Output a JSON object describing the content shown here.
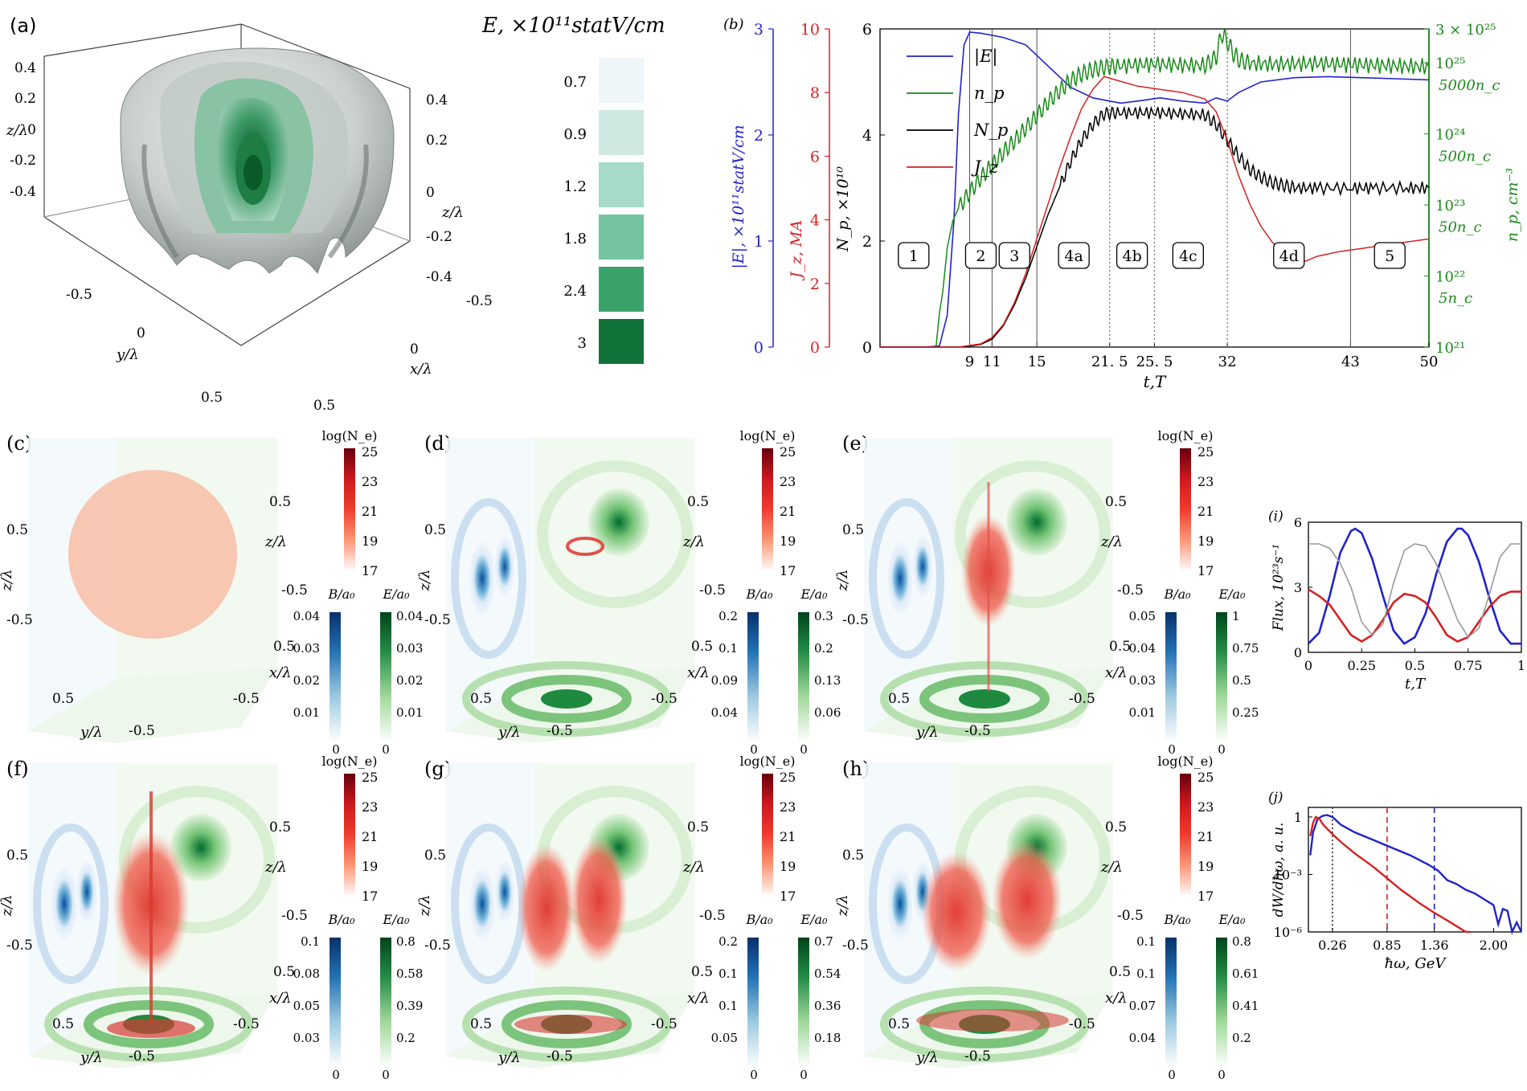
{
  "panel_labels": {
    "a": "(a)",
    "b": "(b)",
    "c": "(c)",
    "d": "(d)",
    "e": "(e)",
    "f": "(f)",
    "g": "(g)",
    "h": "(h)",
    "i": "(i)",
    "j": "(j)"
  },
  "panel_a": {
    "title": "E,  ×10¹¹statV/cm",
    "levels": [
      "0.7",
      "0.9",
      "1.2",
      "1.8",
      "2.4",
      "3"
    ],
    "level_colors": [
      "#eef6fa",
      "#cfe9e2",
      "#a6dac9",
      "#74c3a1",
      "#3aa26a",
      "#12733a"
    ],
    "axis_z_left": "z/λ",
    "axis_z_right": "z/λ",
    "axis_y": "y/λ",
    "axis_x": "x/λ",
    "z_ticks_left": [
      "0.4",
      "0.2",
      "0",
      "-0.2",
      "-0.4"
    ],
    "z_ticks_right": [
      "0.4",
      "0.2",
      "0",
      "-0.2",
      "-0.4"
    ],
    "y_ticks": [
      "-0.5",
      "0",
      "0.5"
    ],
    "x_ticks": [
      "-0.5",
      "0",
      "0.5"
    ]
  },
  "chart_data": [
    {
      "type": "line",
      "panel": "b",
      "xlabel": "t,T",
      "x_ticks": [
        "9",
        "11",
        "15",
        "21. 5",
        "25. 5",
        "32",
        "43",
        "50"
      ],
      "x_tick_values": [
        9,
        11,
        15,
        21.5,
        25.5,
        32,
        43,
        50
      ],
      "xlim": [
        1,
        50
      ],
      "axes": {
        "E": {
          "label": "|E|, ×10¹¹statV/cm",
          "ylim": [
            0,
            3
          ],
          "ticks": [
            "0",
            "1",
            "2",
            "3"
          ],
          "color": "#2222cc"
        },
        "J": {
          "label": "J_z, MA",
          "ylim": [
            0,
            10
          ],
          "ticks": [
            "0",
            "2",
            "4",
            "6",
            "8",
            "10"
          ],
          "color": "#d42222"
        },
        "N": {
          "label": "N_p, ×10¹⁰",
          "ylim": [
            0,
            6
          ],
          "ticks": [
            "0",
            "2",
            "4",
            "6"
          ],
          "color": "#000000"
        },
        "n": {
          "label": "n_p, cm⁻³",
          "scale": "log",
          "ylim": [
            1e+21,
            3e+25
          ],
          "ticks": [
            "10²¹",
            "10²²",
            "10²³",
            "10²⁴",
            "10²⁵",
            "3 × 10²⁵"
          ],
          "tick_values": [
            1e+21,
            1e+22,
            1e+23,
            1e+24,
            1e+25,
            3e+25
          ],
          "color": "#1a8a1a",
          "nc_labels": [
            "5n_c",
            "50n_c",
            "500n_c",
            "5000n_c"
          ],
          "nc_values": [
            5e+21,
            5e+22,
            5e+23,
            5e+24
          ]
        }
      },
      "solid_vlines": [
        9,
        11,
        15,
        43
      ],
      "dotted_vlines": [
        21.5,
        25.5,
        32
      ],
      "phase_labels": [
        {
          "t": 4,
          "text": "1"
        },
        {
          "t": 10,
          "text": "2"
        },
        {
          "t": 13,
          "text": "3"
        },
        {
          "t": 18.3,
          "text": "4a"
        },
        {
          "t": 23.5,
          "text": "4b"
        },
        {
          "t": 28.5,
          "text": "4c"
        },
        {
          "t": 37.5,
          "text": "4d"
        },
        {
          "t": 46.5,
          "text": "5"
        }
      ],
      "series": [
        {
          "name": "|E|",
          "axis": "E",
          "color": "#2222cc",
          "x": [
            1,
            5,
            6.3,
            7,
            7.6,
            8,
            8.5,
            9,
            10,
            12,
            14,
            16,
            18,
            20,
            21.5,
            22.5,
            24,
            26,
            28,
            30,
            31,
            32,
            33,
            35,
            38,
            41,
            44,
            47,
            50
          ],
          "y": [
            0,
            0,
            0.01,
            0.3,
            1.2,
            2.2,
            2.85,
            2.97,
            2.96,
            2.92,
            2.85,
            2.65,
            2.45,
            2.35,
            2.32,
            2.3,
            2.32,
            2.35,
            2.32,
            2.3,
            2.35,
            2.32,
            2.4,
            2.5,
            2.54,
            2.55,
            2.54,
            2.53,
            2.52
          ]
        },
        {
          "name": "n_p",
          "axis": "n",
          "color": "#1a8a1a",
          "x": [
            6,
            6.3,
            6.6,
            7,
            7.5,
            8,
            9,
            10,
            11,
            12,
            13,
            14,
            15,
            16,
            17,
            18,
            19,
            20,
            21,
            22,
            24,
            26,
            28,
            30,
            31,
            31.5,
            32,
            32.5,
            33,
            34,
            36,
            38,
            40,
            42,
            44,
            46,
            48,
            50
          ],
          "y": [
            1e+21,
            3e+21,
            6e+21,
            2.5e+22,
            6e+22,
            9e+22,
            1.5e+23,
            2.4e+23,
            3.6e+23,
            5.5e+23,
            8e+23,
            1.2e+24,
            1.8e+24,
            2.8e+24,
            4e+24,
            5.6e+24,
            7e+24,
            8e+24,
            8.7e+24,
            9e+24,
            9.4e+24,
            9.6e+24,
            9.3e+24,
            9.2e+24,
            1.2e+25,
            2.6e+25,
            2e+25,
            1.4e+25,
            1.1e+25,
            9.8e+24,
            9.5e+24,
            9.7e+24,
            9.8e+24,
            9.6e+24,
            9.4e+24,
            9.2e+24,
            9e+24,
            8.8e+24
          ]
        },
        {
          "name": "N_p",
          "axis": "N",
          "color": "#000000",
          "x": [
            1,
            8,
            9,
            10,
            11,
            12,
            13,
            14,
            15,
            16,
            17,
            18,
            19,
            20,
            21,
            22,
            24,
            26,
            28,
            30,
            31,
            32,
            33,
            34,
            35,
            36,
            37,
            38,
            40,
            43,
            45,
            48,
            50
          ],
          "y": [
            0,
            0,
            0.02,
            0.05,
            0.15,
            0.4,
            0.8,
            1.3,
            1.9,
            2.5,
            3.0,
            3.5,
            3.9,
            4.2,
            4.4,
            4.42,
            4.42,
            4.42,
            4.4,
            4.38,
            4.2,
            3.9,
            3.6,
            3.35,
            3.2,
            3.1,
            3.05,
            3.0,
            3.0,
            3.0,
            3.0,
            3.0,
            3.0
          ]
        },
        {
          "name": "J_z",
          "axis": "J",
          "color": "#d42222",
          "x": [
            1,
            8,
            9,
            10,
            11,
            12,
            13,
            14,
            15,
            16,
            17,
            18,
            19,
            20,
            21,
            22,
            24,
            26,
            28,
            30,
            31,
            32,
            33,
            34,
            35,
            36,
            37,
            38,
            39,
            40,
            42,
            44,
            46,
            48,
            50
          ],
          "y": [
            0,
            0,
            0.05,
            0.1,
            0.3,
            0.7,
            1.4,
            2.3,
            3.4,
            4.5,
            5.6,
            6.6,
            7.5,
            8.1,
            8.5,
            8.4,
            8.2,
            8.1,
            8.0,
            7.8,
            7.4,
            6.5,
            5.4,
            4.5,
            3.8,
            3.3,
            3.0,
            2.8,
            2.7,
            2.85,
            3.0,
            3.1,
            3.2,
            3.3,
            3.4
          ]
        }
      ],
      "legend": {
        "placement": "top-left",
        "entries": [
          "|E|",
          "n_p",
          "N_p",
          "J_z"
        ]
      }
    },
    {
      "type": "line",
      "panel": "i",
      "ylabel": "Flux, 10²³s⁻¹",
      "xlabel": "t,T",
      "xlim": [
        0,
        1
      ],
      "ylim": [
        0,
        6
      ],
      "x_ticks": [
        "0",
        "0.25",
        "0.5",
        "0.75",
        "1"
      ],
      "y_ticks": [
        "0",
        "3",
        "6"
      ],
      "series": [
        {
          "color": "#2222cc",
          "x": [
            0,
            0.05,
            0.1,
            0.15,
            0.2,
            0.22,
            0.25,
            0.3,
            0.35,
            0.4,
            0.45,
            0.5,
            0.55,
            0.6,
            0.65,
            0.7,
            0.72,
            0.75,
            0.8,
            0.85,
            0.9,
            0.95,
            1.0
          ],
          "y": [
            0.4,
            0.9,
            2.6,
            4.6,
            5.6,
            5.7,
            5.5,
            4.3,
            2.6,
            1.0,
            0.4,
            0.7,
            1.8,
            3.6,
            5.1,
            5.7,
            5.7,
            5.4,
            4.2,
            2.5,
            1.0,
            0.4,
            0.4
          ]
        },
        {
          "color": "#d42222",
          "x": [
            0,
            0.05,
            0.1,
            0.15,
            0.2,
            0.25,
            0.3,
            0.35,
            0.4,
            0.45,
            0.5,
            0.55,
            0.6,
            0.65,
            0.7,
            0.75,
            0.8,
            0.85,
            0.9,
            0.95,
            1.0
          ],
          "y": [
            2.9,
            2.6,
            2.2,
            1.5,
            0.8,
            0.5,
            0.8,
            1.5,
            2.3,
            2.7,
            2.6,
            2.3,
            1.6,
            0.8,
            0.5,
            0.7,
            1.4,
            2.1,
            2.6,
            2.8,
            2.8
          ]
        },
        {
          "color": "#999999",
          "x": [
            0,
            0.05,
            0.1,
            0.15,
            0.2,
            0.25,
            0.3,
            0.35,
            0.4,
            0.45,
            0.5,
            0.55,
            0.6,
            0.65,
            0.7,
            0.75,
            0.8,
            0.85,
            0.9,
            0.95,
            1.0
          ],
          "y": [
            5.0,
            5.0,
            4.8,
            4.1,
            3.0,
            1.4,
            0.8,
            1.3,
            3.2,
            4.7,
            5.0,
            4.9,
            4.1,
            2.8,
            1.5,
            0.7,
            1.1,
            2.7,
            4.4,
            5.0,
            5.0
          ]
        }
      ]
    },
    {
      "type": "line",
      "panel": "j",
      "ylabel": "dW/dħω, a. u.",
      "xlabel": "ħω, GeV",
      "xlim": [
        0,
        2.3
      ],
      "ylim_log10": [
        -6,
        0.5
      ],
      "x_ticks": [
        "0.26",
        "0.85",
        "1.36",
        "2.00"
      ],
      "x_tick_values": [
        0.26,
        0.85,
        1.36,
        2.0
      ],
      "y_ticks": [
        "1",
        "10⁻³",
        "10⁻⁶"
      ],
      "y_tick_values_log10": [
        0,
        -3,
        -6
      ],
      "dashed_vlines": [
        {
          "x": 0.26,
          "color": "#333333"
        },
        {
          "x": 0.85,
          "color": "#d42222"
        },
        {
          "x": 1.36,
          "color": "#2222cc"
        }
      ],
      "series": [
        {
          "color": "#2222cc",
          "x": [
            0.02,
            0.05,
            0.1,
            0.15,
            0.2,
            0.26,
            0.35,
            0.5,
            0.7,
            0.9,
            1.1,
            1.3,
            1.4,
            1.5,
            1.6,
            1.7,
            1.8,
            1.9,
            2.0,
            2.05,
            2.1,
            2.15,
            2.2,
            2.25,
            2.3
          ],
          "log10y": [
            -2.0,
            -0.8,
            -0.1,
            0.05,
            0.1,
            0.0,
            -0.4,
            -0.8,
            -1.2,
            -1.6,
            -2.0,
            -2.5,
            -2.8,
            -3.3,
            -3.5,
            -3.8,
            -4.0,
            -4.3,
            -4.6,
            -5.6,
            -4.8,
            -4.9,
            -6.0,
            -5.5,
            -6.0
          ]
        },
        {
          "color": "#d42222",
          "x": [
            0.02,
            0.05,
            0.08,
            0.12,
            0.16,
            0.2,
            0.26,
            0.35,
            0.5,
            0.7,
            0.85,
            1.0,
            1.2,
            1.36,
            1.5,
            1.6,
            1.7,
            1.75
          ],
          "log10y": [
            -1.0,
            -0.3,
            0.0,
            -0.1,
            -0.4,
            -0.6,
            -0.9,
            -1.3,
            -1.9,
            -2.6,
            -3.2,
            -3.8,
            -4.5,
            -5.0,
            -5.4,
            -5.7,
            -6.0,
            -6.0
          ]
        }
      ]
    }
  ],
  "panels_3d": [
    {
      "id": "c",
      "label": "(c)",
      "ne_title": "log(N_e)",
      "ne_ticks": [
        "25",
        "23",
        "21",
        "19",
        "17"
      ],
      "b_title": "B/a₀",
      "e_title": "E/a₀",
      "b_ticks": [
        "0.04",
        "0.03",
        "0.02",
        "0.01",
        "0"
      ],
      "e_ticks": [
        "0.04",
        "0.03",
        "0.02",
        "0.01",
        "0"
      ],
      "z_label": "z/λ",
      "z_label_left": "z/λ",
      "x_label": "x/λ",
      "y_label": "y/λ",
      "tick_05": "0.5",
      "tick_m05": "-0.5"
    },
    {
      "id": "d",
      "label": "(d)",
      "ne_title": "log(N_e)",
      "ne_ticks": [
        "25",
        "23",
        "21",
        "19",
        "17"
      ],
      "b_title": "B/a₀",
      "e_title": "E/a₀",
      "b_ticks": [
        "0.2",
        "0.1",
        "0.09",
        "0.04",
        "0"
      ],
      "e_ticks": [
        "0.3",
        "0.2",
        "0.13",
        "0.06",
        "0"
      ],
      "z_label": "z/λ",
      "z_label_left": "z/λ",
      "x_label": "x/λ",
      "y_label": "y/λ",
      "tick_05": "0.5",
      "tick_m05": "-0.5"
    },
    {
      "id": "e",
      "label": "(e)",
      "ne_title": "log(N_e)",
      "ne_ticks": [
        "25",
        "23",
        "21",
        "19",
        "17"
      ],
      "b_title": "B/a₀",
      "e_title": "E/a₀",
      "b_ticks": [
        "0.05",
        "0.04",
        "0.03",
        "0.01",
        "0"
      ],
      "e_ticks": [
        "1",
        "0.75",
        "0.5",
        "0.25",
        "0"
      ],
      "z_label": "z/λ",
      "z_label_left": "z/λ",
      "x_label": "x/λ",
      "y_label": "y/λ",
      "tick_05": "0.5",
      "tick_m05": "-0.5"
    },
    {
      "id": "f",
      "label": "(f)",
      "ne_title": "log(N_e)",
      "ne_ticks": [
        "25",
        "23",
        "21",
        "19",
        "17"
      ],
      "b_title": "B/a₀",
      "e_title": "E/a₀",
      "b_ticks": [
        "0.1",
        "0.08",
        "0.05",
        "0.03",
        "0"
      ],
      "e_ticks": [
        "0.8",
        "0.58",
        "0.39",
        "0.2",
        "0"
      ],
      "z_label": "z/λ",
      "z_label_left": "z/λ",
      "x_label": "x/λ",
      "y_label": "y/λ",
      "tick_05": "0.5",
      "tick_m05": "-0.5"
    },
    {
      "id": "g",
      "label": "(g)",
      "ne_title": "log(N_e)",
      "ne_ticks": [
        "25",
        "23",
        "21",
        "19",
        "17"
      ],
      "b_title": "B/a₀",
      "e_title": "E/a₀",
      "b_ticks": [
        "0.2",
        "0.1",
        "0.1",
        "0.05",
        "0"
      ],
      "e_ticks": [
        "0.7",
        "0.54",
        "0.36",
        "0.18",
        "0"
      ],
      "z_label": "z/λ",
      "z_label_left": "z/λ",
      "x_label": "x/λ",
      "y_label": "y/λ",
      "tick_05": "0.5",
      "tick_m05": "-0.5"
    },
    {
      "id": "h",
      "label": "(h)",
      "ne_title": "log(N_e)",
      "ne_ticks": [
        "25",
        "23",
        "21",
        "19",
        "17"
      ],
      "b_title": "B/a₀",
      "e_title": "E/a₀",
      "b_ticks": [
        "0.1",
        "0.1",
        "0.07",
        "0.04",
        "0"
      ],
      "e_ticks": [
        "0.8",
        "0.61",
        "0.41",
        "0.2",
        "0"
      ],
      "z_label": "z/λ",
      "z_label_left": "z/λ",
      "x_label": "x/λ",
      "y_label": "y/λ",
      "tick_05": "0.5",
      "tick_m05": "-0.5"
    }
  ]
}
